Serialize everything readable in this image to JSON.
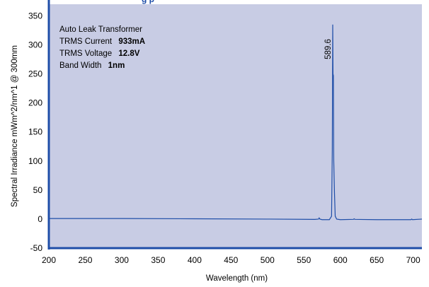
{
  "chart_data": {
    "type": "line",
    "title": "",
    "partial_title": "g    p",
    "xlabel": "Wavelength (nm)",
    "ylabel": "Spectral Irradiance mWm^2/nm^1 @ 300mm",
    "xlim": [
      200,
      712
    ],
    "ylim": [
      -50,
      370
    ],
    "xticks": [
      200,
      250,
      300,
      350,
      400,
      450,
      500,
      550,
      600,
      650,
      700
    ],
    "yticks": [
      -50,
      0,
      50,
      100,
      150,
      200,
      250,
      300,
      350
    ],
    "grid": false,
    "plot_background": "#c8cce4",
    "axis_color": "#1f4ea8",
    "series": [
      {
        "color": "#1f4ea8",
        "x": [
          200,
          300,
          400,
          500,
          565,
          570,
          571,
          572,
          575,
          585,
          588,
          589,
          589.6,
          590,
          590.5,
          591,
          592,
          593,
          595,
          600,
          618,
          619,
          620,
          650,
          697,
          698,
          699,
          712
        ],
        "y": [
          1,
          1,
          0.5,
          0,
          -0.5,
          0,
          2,
          0,
          -1,
          -1,
          5,
          120,
          335,
          250,
          247,
          100,
          45,
          5,
          0,
          -1,
          -0.5,
          0.5,
          -0.5,
          -1,
          -1,
          0,
          -1,
          0
        ]
      }
    ],
    "annotations": {
      "peak_label": "589.6",
      "lines": [
        {
          "label": "Auto Leak Transformer",
          "value": ""
        },
        {
          "label": "TRMS Current",
          "value": "933mA"
        },
        {
          "label": "TRMS Voltage",
          "value": "12.8V"
        },
        {
          "label": "Band Width",
          "value": "1nm"
        }
      ]
    }
  }
}
